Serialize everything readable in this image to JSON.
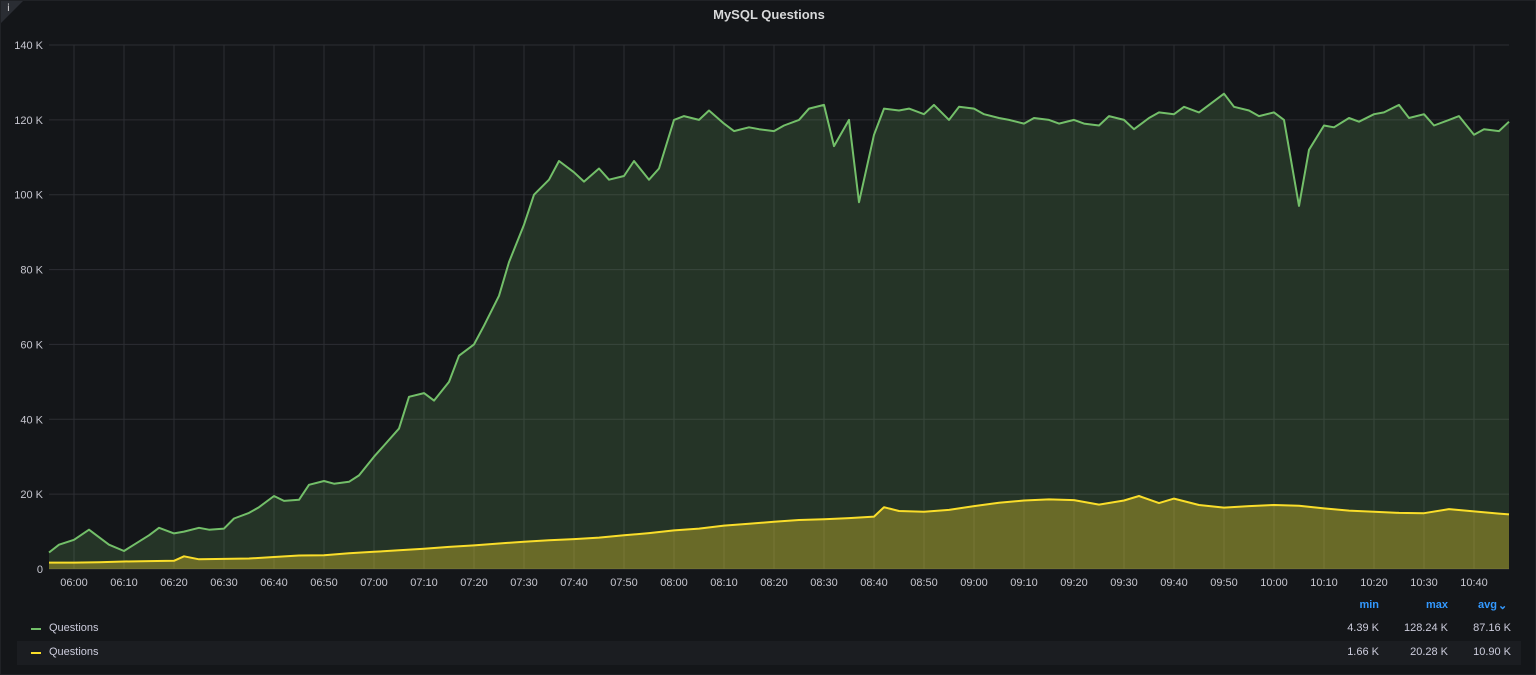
{
  "panel": {
    "title": "MySQL Questions",
    "info_icon": "info-icon",
    "info_glyph": "i"
  },
  "colors": {
    "green": "#73bf69",
    "yellow": "#fade2a",
    "grid": "#2c2e33",
    "axis_text": "#c7c7d0",
    "legend_header": "#3399ff"
  },
  "chart_data": {
    "type": "area",
    "title": "MySQL Questions",
    "xlabel": "",
    "ylabel": "",
    "ylim": [
      0,
      140000
    ],
    "y_ticks": [
      "0",
      "20 K",
      "40 K",
      "60 K",
      "80 K",
      "100 K",
      "120 K",
      "140 K"
    ],
    "x_ticks": [
      "06:00",
      "06:10",
      "06:20",
      "06:30",
      "06:40",
      "06:50",
      "07:00",
      "07:10",
      "07:20",
      "07:30",
      "07:40",
      "07:50",
      "08:00",
      "08:10",
      "08:20",
      "08:30",
      "08:40",
      "08:50",
      "09:00",
      "09:10",
      "09:20",
      "09:30",
      "09:40",
      "09:50",
      "10:00",
      "10:10",
      "10:20",
      "10:30",
      "10:40"
    ],
    "xlim": [
      "05:55",
      "10:47"
    ],
    "grid": true,
    "legend_placement": "bottom",
    "series": [
      {
        "name": "Questions",
        "color": "#73bf69",
        "x": [
          "05:55",
          "05:57",
          "06:00",
          "06:03",
          "06:05",
          "06:07",
          "06:10",
          "06:12",
          "06:15",
          "06:17",
          "06:20",
          "06:22",
          "06:25",
          "06:27",
          "06:30",
          "06:32",
          "06:35",
          "06:37",
          "06:40",
          "06:42",
          "06:45",
          "06:47",
          "06:50",
          "06:52",
          "06:55",
          "06:57",
          "07:00",
          "07:02",
          "07:05",
          "07:07",
          "07:10",
          "07:12",
          "07:15",
          "07:17",
          "07:20",
          "07:22",
          "07:25",
          "07:27",
          "07:30",
          "07:32",
          "07:35",
          "07:37",
          "07:40",
          "07:42",
          "07:45",
          "07:47",
          "07:50",
          "07:52",
          "07:55",
          "07:57",
          "08:00",
          "08:02",
          "08:05",
          "08:07",
          "08:10",
          "08:12",
          "08:15",
          "08:17",
          "08:20",
          "08:22",
          "08:25",
          "08:27",
          "08:30",
          "08:32",
          "08:35",
          "08:37",
          "08:40",
          "08:42",
          "08:45",
          "08:47",
          "08:50",
          "08:52",
          "08:55",
          "08:57",
          "09:00",
          "09:02",
          "09:05",
          "09:07",
          "09:10",
          "09:12",
          "09:15",
          "09:17",
          "09:20",
          "09:22",
          "09:25",
          "09:27",
          "09:30",
          "09:32",
          "09:35",
          "09:37",
          "09:40",
          "09:42",
          "09:45",
          "09:47",
          "09:50",
          "09:52",
          "09:55",
          "09:57",
          "10:00",
          "10:02",
          "10:05",
          "10:07",
          "10:10",
          "10:12",
          "10:15",
          "10:17",
          "10:20",
          "10:22",
          "10:25",
          "10:27",
          "10:30",
          "10:32",
          "10:35",
          "10:37",
          "10:40",
          "10:42",
          "10:45",
          "10:47"
        ],
        "values": [
          4400,
          6500,
          7800,
          10500,
          8500,
          6500,
          4800,
          6500,
          9000,
          11000,
          9500,
          10000,
          11000,
          10500,
          10800,
          13500,
          15000,
          16500,
          19500,
          18200,
          18500,
          22500,
          23500,
          22800,
          23300,
          25000,
          30000,
          33000,
          37500,
          46000,
          47000,
          45000,
          50000,
          57000,
          60000,
          65000,
          73000,
          82000,
          92000,
          100000,
          104000,
          109000,
          106000,
          103500,
          107000,
          104000,
          105000,
          109000,
          104000,
          107000,
          120000,
          121000,
          120000,
          122500,
          119000,
          117000,
          118000,
          117500,
          117000,
          118500,
          120000,
          123000,
          124000,
          113000,
          120000,
          98000,
          116000,
          123000,
          122500,
          123000,
          121500,
          124000,
          120000,
          123500,
          123000,
          121500,
          120500,
          120000,
          119000,
          120500,
          120000,
          119000,
          120000,
          119000,
          118500,
          121000,
          120000,
          117500,
          120500,
          122000,
          121500,
          123500,
          122000,
          124000,
          127000,
          123500,
          122500,
          121000,
          122000,
          120000,
          97000,
          112000,
          118500,
          118000,
          120500,
          119500,
          121500,
          122000,
          124000,
          120500,
          121500,
          118500,
          120000,
          121000,
          116000,
          117500,
          117000,
          119500
        ]
      },
      {
        "name": "Questions",
        "color": "#fade2a",
        "x": [
          "05:55",
          "06:00",
          "06:05",
          "06:10",
          "06:15",
          "06:20",
          "06:22",
          "06:25",
          "06:30",
          "06:35",
          "06:40",
          "06:45",
          "06:50",
          "06:55",
          "07:00",
          "07:05",
          "07:10",
          "07:15",
          "07:20",
          "07:25",
          "07:30",
          "07:35",
          "07:40",
          "07:45",
          "07:50",
          "07:55",
          "08:00",
          "08:05",
          "08:10",
          "08:15",
          "08:20",
          "08:25",
          "08:30",
          "08:35",
          "08:40",
          "08:42",
          "08:45",
          "08:50",
          "08:55",
          "09:00",
          "09:05",
          "09:10",
          "09:15",
          "09:20",
          "09:25",
          "09:30",
          "09:33",
          "09:37",
          "09:40",
          "09:45",
          "09:50",
          "09:55",
          "10:00",
          "10:05",
          "10:10",
          "10:15",
          "10:20",
          "10:25",
          "10:30",
          "10:35",
          "10:40",
          "10:45",
          "10:47"
        ],
        "values": [
          1700,
          1700,
          1800,
          2000,
          2100,
          2200,
          3400,
          2600,
          2700,
          2800,
          3200,
          3600,
          3700,
          4200,
          4600,
          5000,
          5400,
          5900,
          6300,
          6800,
          7300,
          7700,
          8000,
          8400,
          9000,
          9600,
          10300,
          10800,
          11600,
          12100,
          12600,
          13100,
          13300,
          13600,
          14000,
          16500,
          15500,
          15300,
          15800,
          16800,
          17700,
          18300,
          18600,
          18400,
          17200,
          18300,
          19500,
          17600,
          18800,
          17100,
          16400,
          16800,
          17100,
          16900,
          16200,
          15600,
          15300,
          15000,
          14900,
          16000,
          15400,
          14800,
          14600
        ]
      }
    ]
  },
  "legend": {
    "headers": {
      "min": "min",
      "max": "max",
      "avg": "avg",
      "sort_icon": "chevron-down-icon"
    },
    "rows": [
      {
        "name": "Questions",
        "color": "#73bf69",
        "min": "4.39 K",
        "max": "128.24 K",
        "avg": "87.16 K"
      },
      {
        "name": "Questions",
        "color": "#fade2a",
        "min": "1.66 K",
        "max": "20.28 K",
        "avg": "10.90 K"
      }
    ]
  }
}
